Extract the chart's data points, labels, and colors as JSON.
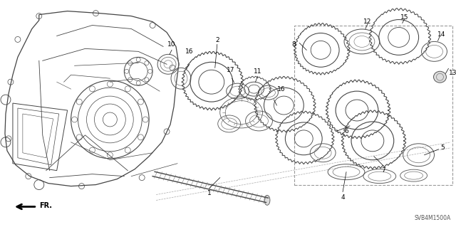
{
  "bg_color": "#ffffff",
  "diagram_code": "SVB4M1500A",
  "fr_label": "FR.",
  "fig_width": 6.4,
  "fig_height": 3.19,
  "line_color": "#333333",
  "gear_color": "#555555",
  "light_gray": "#aaaaaa"
}
